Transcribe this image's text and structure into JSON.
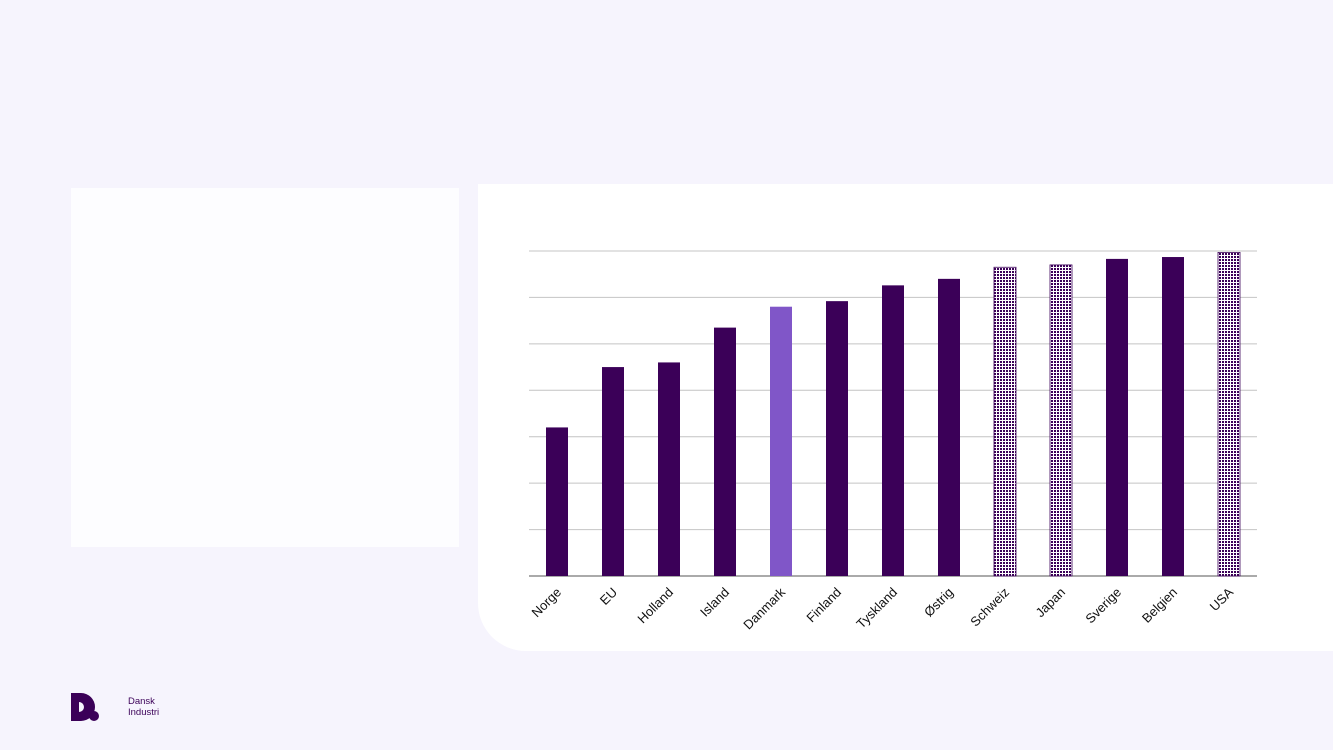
{
  "brand": {
    "name_line1": "Dansk",
    "name_line2": "Industri",
    "color": "#3b0058"
  },
  "chart_data": {
    "type": "bar",
    "categories": [
      "Norge",
      "EU",
      "Holland",
      "Island",
      "Danmark",
      "Finland",
      "Tyskland",
      "Østrig",
      "Schweiz",
      "Japan",
      "Sverige",
      "Belgien",
      "USA"
    ],
    "values": [
      32,
      45,
      46,
      53.5,
      58,
      59.2,
      62.6,
      64,
      66.5,
      67,
      68.3,
      68.7,
      69.7
    ],
    "bar_styles": [
      "solid",
      "solid",
      "solid",
      "solid",
      "highlight",
      "solid",
      "solid",
      "solid",
      "hatched",
      "hatched",
      "solid",
      "solid",
      "hatched"
    ],
    "ylim": [
      0,
      70
    ],
    "ytick_step": 10,
    "grid": true,
    "colors": {
      "solid": "#3b0058",
      "highlight": "#8056c8",
      "hatched": "#3b0058"
    }
  }
}
